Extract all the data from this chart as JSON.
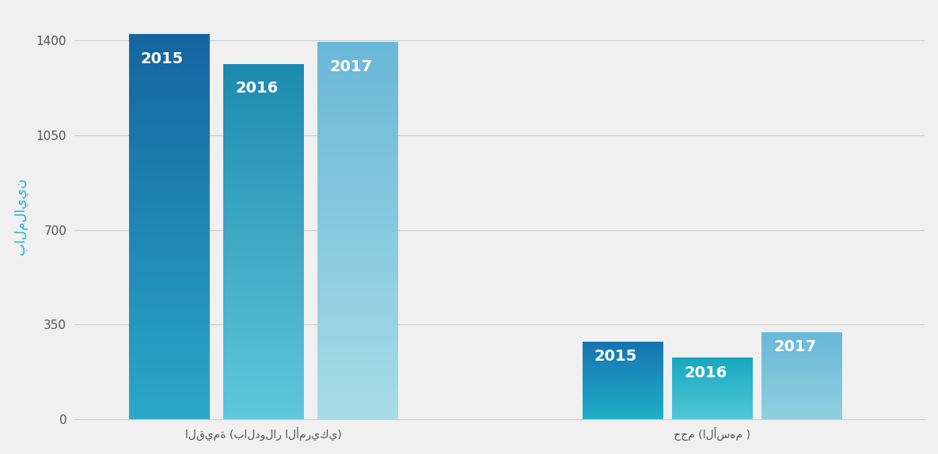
{
  "group1_label": "القيمة (بالدولار الأمريكي)",
  "group2_label": "حجم (الأسهم )",
  "ylabel": "بالملايين",
  "yticks": [
    0,
    350,
    700,
    1050,
    1400
  ],
  "group1_values": [
    1420,
    1310,
    1390
  ],
  "group2_values": [
    285,
    225,
    320
  ],
  "years": [
    "2015",
    "2016",
    "2017"
  ],
  "bar_colors_group1_top": [
    "#1565a0",
    "#1e8ab0",
    "#6ab8d8"
  ],
  "bar_colors_group1_bot": [
    "#2aa8c8",
    "#60c8dc",
    "#a8dce8"
  ],
  "bar_colors_group2_top": [
    "#1575b0",
    "#18a8c0",
    "#6ab8d8"
  ],
  "bar_colors_group2_bot": [
    "#20b0c8",
    "#50c8d8",
    "#90d0e0"
  ],
  "label_color": "#ffffff",
  "ylabel_color": "#18b8cc",
  "background_color": "#f0f0f0",
  "grid_color": "#cccccc",
  "tick_color": "#555555",
  "label_fontsize": 14,
  "xlabel_fontsize": 10,
  "ytick_fontsize": 11
}
